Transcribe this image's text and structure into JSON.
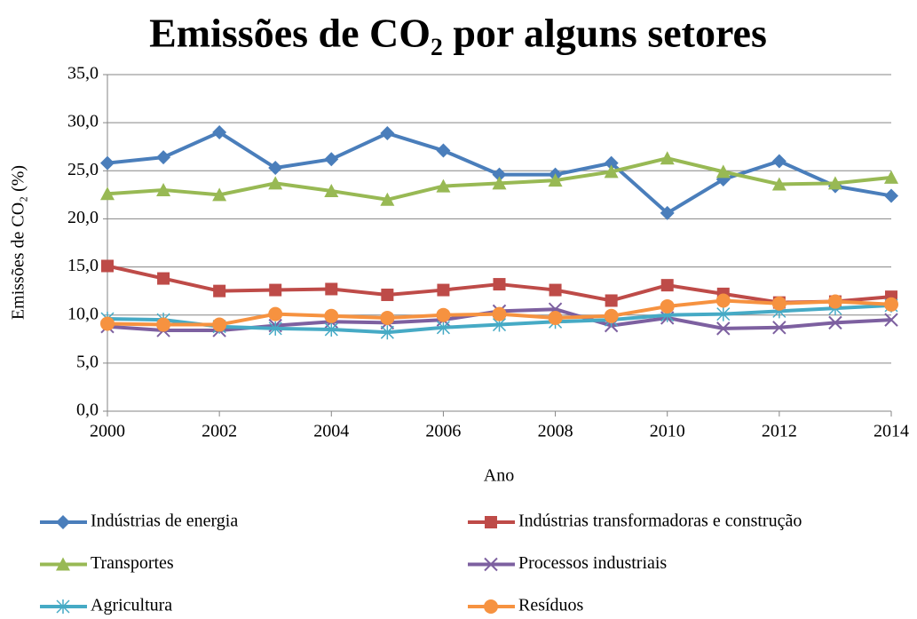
{
  "chart_data": {
    "type": "line",
    "title": "Emissões de CO₂ por alguns setores",
    "x_label": "Ano",
    "y_label": "Emissões de CO₂ (%)",
    "x": [
      2000,
      2001,
      2002,
      2003,
      2004,
      2005,
      2006,
      2007,
      2008,
      2009,
      2010,
      2011,
      2012,
      2013,
      2014
    ],
    "xlim": [
      2000,
      2014
    ],
    "xticks": [
      2000,
      2002,
      2004,
      2006,
      2008,
      2010,
      2012,
      2014
    ],
    "ylim": [
      0,
      35
    ],
    "yticks": [
      {
        "value": 0,
        "label": "0,0"
      },
      {
        "value": 5,
        "label": "5,0"
      },
      {
        "value": 10,
        "label": "10,0"
      },
      {
        "value": 15,
        "label": "15,0"
      },
      {
        "value": 20,
        "label": "20,0"
      },
      {
        "value": 25,
        "label": "25,0"
      },
      {
        "value": 30,
        "label": "30,0"
      },
      {
        "value": 35,
        "label": "35,0"
      }
    ],
    "grid": true,
    "legend": "bottom",
    "series": [
      {
        "name": "Indústrias de energia",
        "color": "#4a7ebb",
        "marker": "diamond",
        "values": [
          25.8,
          26.4,
          29.0,
          25.3,
          26.2,
          28.9,
          27.1,
          24.6,
          24.6,
          25.8,
          20.6,
          24.1,
          26.0,
          23.4,
          22.4
        ]
      },
      {
        "name": "Indústrias transformadoras e construção",
        "color": "#be4b48",
        "marker": "square",
        "values": [
          15.1,
          13.8,
          12.5,
          12.6,
          12.7,
          12.1,
          12.6,
          13.2,
          12.6,
          11.5,
          13.1,
          12.2,
          11.3,
          11.4,
          11.9
        ]
      },
      {
        "name": "Transportes",
        "color": "#98b954",
        "marker": "triangle",
        "values": [
          22.6,
          23.0,
          22.5,
          23.7,
          22.9,
          22.0,
          23.4,
          23.7,
          24.0,
          24.9,
          26.3,
          24.9,
          23.6,
          23.7,
          24.3
        ]
      },
      {
        "name": "Processos industriais",
        "color": "#7d60a0",
        "marker": "x",
        "values": [
          8.8,
          8.4,
          8.4,
          8.9,
          9.3,
          9.2,
          9.5,
          10.4,
          10.6,
          8.9,
          9.7,
          8.6,
          8.7,
          9.2,
          9.5
        ]
      },
      {
        "name": "Agricultura",
        "color": "#46aac5",
        "marker": "star",
        "values": [
          9.6,
          9.5,
          8.8,
          8.6,
          8.5,
          8.2,
          8.7,
          9.0,
          9.3,
          9.5,
          10.0,
          10.1,
          10.4,
          10.7,
          11.0
        ]
      },
      {
        "name": "Resíduos",
        "color": "#f69240",
        "marker": "circle",
        "values": [
          9.1,
          9.0,
          9.0,
          10.1,
          9.9,
          9.7,
          10.0,
          10.1,
          9.7,
          9.9,
          10.9,
          11.5,
          11.2,
          11.4,
          11.1
        ]
      }
    ]
  }
}
